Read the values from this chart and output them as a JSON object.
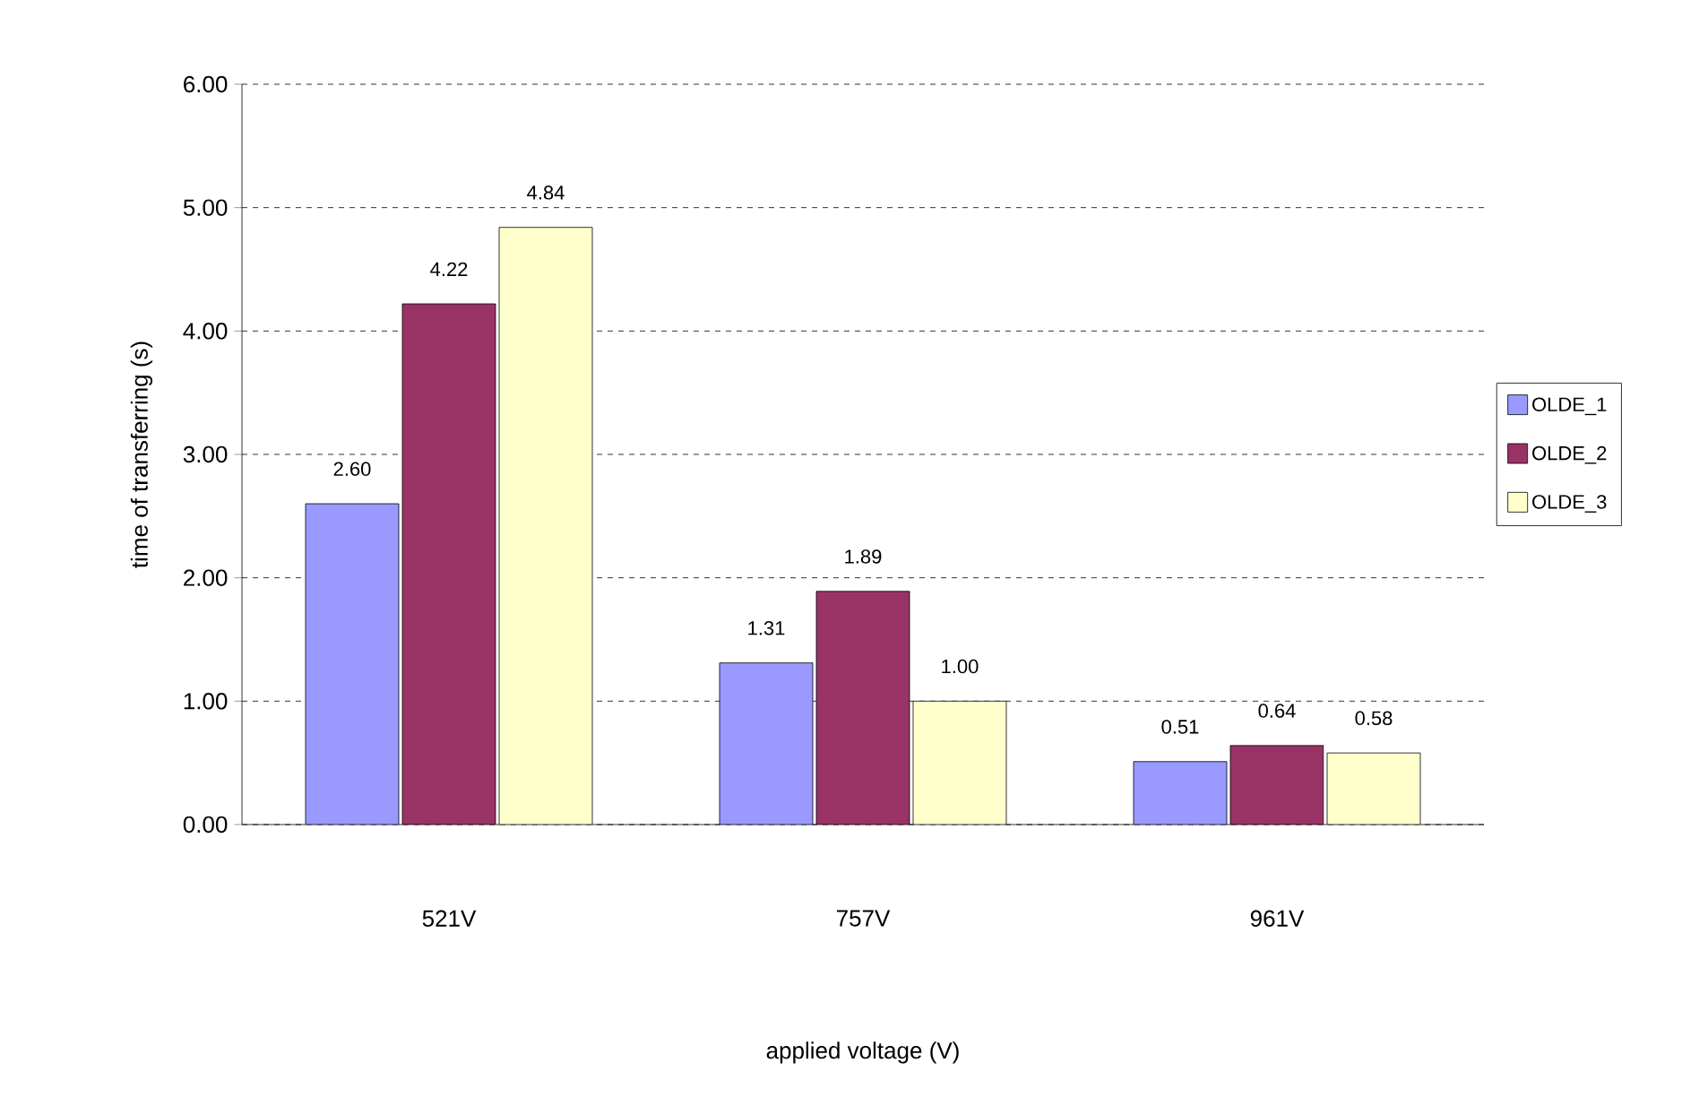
{
  "chart_data": {
    "type": "bar",
    "xlabel": "applied voltage (V)",
    "ylabel": "time of transferring (s)",
    "categories": [
      "521V",
      "757V",
      "961V"
    ],
    "series": [
      {
        "name": "OLDE_1",
        "color": "#9999ff",
        "values": [
          2.6,
          1.31,
          0.51
        ],
        "value_labels": [
          "2.60",
          "1.31",
          "0.51"
        ]
      },
      {
        "name": "OLDE_2",
        "color": "#993366",
        "values": [
          4.22,
          1.89,
          0.64
        ],
        "value_labels": [
          "4.22",
          "1.89",
          "0.64"
        ]
      },
      {
        "name": "OLDE_3",
        "color": "#ffffcc",
        "values": [
          4.84,
          1.0,
          0.58
        ],
        "value_labels": [
          "4.84",
          "1.00",
          "0.58"
        ]
      }
    ],
    "ylim": [
      0,
      6
    ],
    "yticks": [
      {
        "value": 0,
        "label": "0.00"
      },
      {
        "value": 1,
        "label": "1.00"
      },
      {
        "value": 2,
        "label": "2.00"
      },
      {
        "value": 3,
        "label": "3.00"
      },
      {
        "value": 4,
        "label": "4.00"
      },
      {
        "value": 5,
        "label": "5.00"
      },
      {
        "value": 6,
        "label": "6.00"
      }
    ],
    "grid": "y",
    "legend": "right"
  }
}
